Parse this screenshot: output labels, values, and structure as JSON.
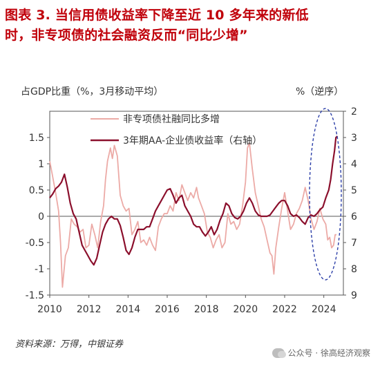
{
  "title": {
    "line1": "图表 3. 当信用债收益率下降至近 10 多年来的新低",
    "line2": "时，非专项债的社会融资反而“同比少增”"
  },
  "source": "资料来源：万得，中银证券",
  "watermark": "公众号 · 徐高经济观察",
  "colors": {
    "title": "#c0000a",
    "series1": "#ecaaa6",
    "series2": "#8b0f2c",
    "ellipse": "#2c3fa8"
  },
  "chart_data": {
    "type": "line",
    "left_axis_label": "占GDP比重（%，3月移动平均）",
    "right_axis_label": "%（逆序）",
    "x_ticks": [
      "2010",
      "2012",
      "2014",
      "2016",
      "2018",
      "2020",
      "2022",
      "2024"
    ],
    "y_left_ticks": [
      "1.5",
      "1",
      "0.5",
      "0",
      "-0.5",
      "-1",
      "-1.5"
    ],
    "y_right_ticks": [
      "2",
      "3",
      "4",
      "5",
      "6",
      "7",
      "8",
      "9"
    ],
    "ylim_left": [
      -1.5,
      2
    ],
    "ylim_right_inverted": [
      2,
      9
    ],
    "xlim": [
      2010,
      2025
    ],
    "series": [
      {
        "name": "非专项债社融同比多增",
        "axis": "left",
        "points": [
          [
            2010.0,
            1.05
          ],
          [
            2010.15,
            0.75
          ],
          [
            2010.3,
            0.45
          ],
          [
            2010.45,
            0.1
          ],
          [
            2010.55,
            -0.5
          ],
          [
            2010.65,
            -1.35
          ],
          [
            2010.8,
            -0.75
          ],
          [
            2010.95,
            -0.6
          ],
          [
            2011.1,
            -0.05
          ],
          [
            2011.25,
            -0.15
          ],
          [
            2011.4,
            -0.2
          ],
          [
            2011.55,
            -0.3
          ],
          [
            2011.7,
            -0.25
          ],
          [
            2011.85,
            -0.6
          ],
          [
            2012.0,
            -0.55
          ],
          [
            2012.15,
            -0.15
          ],
          [
            2012.3,
            -0.35
          ],
          [
            2012.45,
            -0.6
          ],
          [
            2012.6,
            -0.1
          ],
          [
            2012.75,
            0.2
          ],
          [
            2012.85,
            0.7
          ],
          [
            2012.95,
            1.05
          ],
          [
            2013.1,
            1.3
          ],
          [
            2013.2,
            1.1
          ],
          [
            2013.3,
            1.35
          ],
          [
            2013.45,
            1.15
          ],
          [
            2013.6,
            0.4
          ],
          [
            2013.75,
            0.2
          ],
          [
            2013.9,
            0.1
          ],
          [
            2014.05,
            0.15
          ],
          [
            2014.2,
            -0.35
          ],
          [
            2014.35,
            -0.25
          ],
          [
            2014.5,
            -0.1
          ],
          [
            2014.65,
            -0.5
          ],
          [
            2014.8,
            -0.45
          ],
          [
            2014.95,
            -0.55
          ],
          [
            2015.1,
            -0.4
          ],
          [
            2015.25,
            -0.55
          ],
          [
            2015.4,
            -0.65
          ],
          [
            2015.55,
            -0.2
          ],
          [
            2015.7,
            -0.05
          ],
          [
            2015.85,
            0.05
          ],
          [
            2016.0,
            0.05
          ],
          [
            2016.15,
            0.2
          ],
          [
            2016.3,
            0.1
          ],
          [
            2016.45,
            0.45
          ],
          [
            2016.6,
            0.3
          ],
          [
            2016.75,
            0.6
          ],
          [
            2016.9,
            0.45
          ],
          [
            2017.05,
            0.3
          ],
          [
            2017.2,
            0.45
          ],
          [
            2017.35,
            0.35
          ],
          [
            2017.5,
            0.55
          ],
          [
            2017.6,
            0.35
          ],
          [
            2017.75,
            0.2
          ],
          [
            2017.9,
            0.05
          ],
          [
            2018.05,
            -0.3
          ],
          [
            2018.2,
            -0.4
          ],
          [
            2018.35,
            -0.6
          ],
          [
            2018.5,
            -0.45
          ],
          [
            2018.65,
            -0.35
          ],
          [
            2018.8,
            -0.6
          ],
          [
            2018.95,
            -0.5
          ],
          [
            2019.1,
            0.05
          ],
          [
            2019.25,
            -0.15
          ],
          [
            2019.4,
            -0.1
          ],
          [
            2019.55,
            -0.25
          ],
          [
            2019.7,
            -0.15
          ],
          [
            2019.85,
            0.2
          ],
          [
            2020.0,
            0.65
          ],
          [
            2020.1,
            1.3
          ],
          [
            2020.2,
            1.4
          ],
          [
            2020.35,
            0.9
          ],
          [
            2020.5,
            0.45
          ],
          [
            2020.65,
            0.2
          ],
          [
            2020.8,
            -0.05
          ],
          [
            2020.95,
            -0.2
          ],
          [
            2021.1,
            -0.45
          ],
          [
            2021.25,
            -0.7
          ],
          [
            2021.35,
            -0.75
          ],
          [
            2021.45,
            -1.1
          ],
          [
            2021.55,
            -0.6
          ],
          [
            2021.7,
            -0.2
          ],
          [
            2021.85,
            0.15
          ],
          [
            2022.0,
            0.45
          ],
          [
            2022.15,
            0.1
          ],
          [
            2022.3,
            -0.25
          ],
          [
            2022.45,
            -0.15
          ],
          [
            2022.6,
            0.05
          ],
          [
            2022.75,
            0.15
          ],
          [
            2022.9,
            0.3
          ],
          [
            2023.05,
            0.55
          ],
          [
            2023.2,
            0.3
          ],
          [
            2023.35,
            -0.05
          ],
          [
            2023.5,
            -0.25
          ],
          [
            2023.65,
            -0.1
          ],
          [
            2023.8,
            0.15
          ],
          [
            2023.95,
            -0.05
          ],
          [
            2024.1,
            -0.15
          ],
          [
            2024.2,
            -0.45
          ],
          [
            2024.3,
            -0.4
          ],
          [
            2024.4,
            -0.6
          ],
          [
            2024.5,
            -0.55
          ],
          [
            2024.58,
            -0.35
          ],
          [
            2024.65,
            -0.35
          ]
        ]
      },
      {
        "name": "3年期AA-企业债收益率（右轴）",
        "axis": "right",
        "points": [
          [
            2010.0,
            5.3
          ],
          [
            2010.15,
            5.15
          ],
          [
            2010.3,
            4.95
          ],
          [
            2010.45,
            4.85
          ],
          [
            2010.6,
            4.7
          ],
          [
            2010.75,
            4.4
          ],
          [
            2010.9,
            4.9
          ],
          [
            2011.05,
            5.5
          ],
          [
            2011.2,
            5.9
          ],
          [
            2011.35,
            6.1
          ],
          [
            2011.5,
            6.6
          ],
          [
            2011.65,
            7.1
          ],
          [
            2011.8,
            7.3
          ],
          [
            2011.95,
            7.5
          ],
          [
            2012.1,
            7.7
          ],
          [
            2012.25,
            7.85
          ],
          [
            2012.4,
            7.6
          ],
          [
            2012.55,
            7.1
          ],
          [
            2012.7,
            6.6
          ],
          [
            2012.85,
            6.3
          ],
          [
            2013.0,
            6.1
          ],
          [
            2013.15,
            6.0
          ],
          [
            2013.3,
            6.1
          ],
          [
            2013.45,
            6.1
          ],
          [
            2013.6,
            6.35
          ],
          [
            2013.75,
            6.8
          ],
          [
            2013.9,
            7.3
          ],
          [
            2014.05,
            7.45
          ],
          [
            2014.2,
            7.2
          ],
          [
            2014.35,
            6.8
          ],
          [
            2014.5,
            6.5
          ],
          [
            2014.65,
            6.5
          ],
          [
            2014.8,
            6.5
          ],
          [
            2014.95,
            6.4
          ],
          [
            2015.1,
            6.4
          ],
          [
            2015.25,
            6.1
          ],
          [
            2015.4,
            5.8
          ],
          [
            2015.55,
            5.6
          ],
          [
            2015.7,
            5.4
          ],
          [
            2015.85,
            5.2
          ],
          [
            2016.0,
            5.0
          ],
          [
            2016.15,
            4.95
          ],
          [
            2016.3,
            5.2
          ],
          [
            2016.45,
            5.5
          ],
          [
            2016.6,
            5.3
          ],
          [
            2016.75,
            5.2
          ],
          [
            2016.9,
            5.6
          ],
          [
            2017.05,
            5.8
          ],
          [
            2017.2,
            6.0
          ],
          [
            2017.35,
            6.3
          ],
          [
            2017.5,
            6.4
          ],
          [
            2017.65,
            6.4
          ],
          [
            2017.8,
            6.6
          ],
          [
            2017.95,
            6.75
          ],
          [
            2018.1,
            6.6
          ],
          [
            2018.25,
            6.4
          ],
          [
            2018.4,
            6.7
          ],
          [
            2018.55,
            6.5
          ],
          [
            2018.7,
            6.15
          ],
          [
            2018.85,
            5.9
          ],
          [
            2019.0,
            5.5
          ],
          [
            2019.15,
            5.6
          ],
          [
            2019.3,
            5.9
          ],
          [
            2019.45,
            6.05
          ],
          [
            2019.6,
            6.1
          ],
          [
            2019.75,
            6.0
          ],
          [
            2019.9,
            5.8
          ],
          [
            2020.05,
            5.5
          ],
          [
            2020.2,
            5.3
          ],
          [
            2020.35,
            5.5
          ],
          [
            2020.5,
            5.8
          ],
          [
            2020.65,
            5.95
          ],
          [
            2020.8,
            6.0
          ],
          [
            2020.95,
            6.0
          ],
          [
            2021.1,
            6.0
          ],
          [
            2021.25,
            5.95
          ],
          [
            2021.4,
            5.8
          ],
          [
            2021.55,
            5.65
          ],
          [
            2021.7,
            5.5
          ],
          [
            2021.85,
            5.4
          ],
          [
            2022.0,
            5.4
          ],
          [
            2022.15,
            5.6
          ],
          [
            2022.3,
            5.9
          ],
          [
            2022.45,
            6.0
          ],
          [
            2022.6,
            5.95
          ],
          [
            2022.75,
            6.05
          ],
          [
            2022.9,
            6.2
          ],
          [
            2023.05,
            6.3
          ],
          [
            2023.2,
            6.05
          ],
          [
            2023.35,
            5.95
          ],
          [
            2023.5,
            6.0
          ],
          [
            2023.65,
            5.9
          ],
          [
            2023.8,
            5.75
          ],
          [
            2023.95,
            5.65
          ],
          [
            2024.1,
            5.3
          ],
          [
            2024.25,
            5.0
          ],
          [
            2024.35,
            4.6
          ],
          [
            2024.45,
            4.0
          ],
          [
            2024.55,
            3.5
          ],
          [
            2024.62,
            3.0
          ],
          [
            2024.7,
            2.95
          ]
        ]
      }
    ]
  }
}
